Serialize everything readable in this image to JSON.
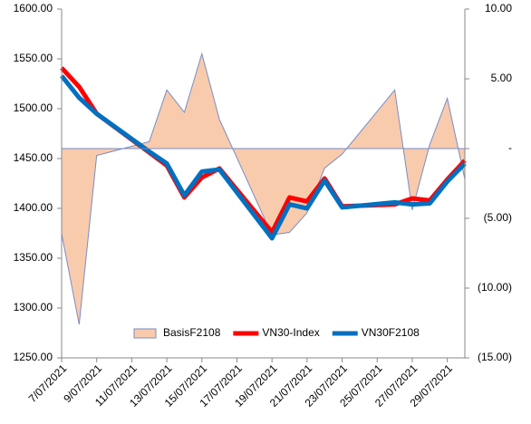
{
  "chart_data": {
    "type": "line",
    "x": [
      "7/07/2021",
      "8/07/2021",
      "9/07/2021",
      "12/07/2021",
      "13/07/2021",
      "14/07/2021",
      "15/07/2021",
      "16/07/2021",
      "19/07/2021",
      "20/07/2021",
      "21/07/2021",
      "22/07/2021",
      "23/07/2021",
      "26/07/2021",
      "27/07/2021",
      "28/07/2021",
      "29/07/2021",
      "30/07/2021"
    ],
    "xlim": [
      "7/07/2021",
      "30/07/2021"
    ],
    "xticks": [
      "7/07/2021",
      "9/07/2021",
      "11/07/2021",
      "13/07/2021",
      "15/07/2021",
      "17/07/2021",
      "19/07/2021",
      "21/07/2021",
      "23/07/2021",
      "25/07/2021",
      "27/07/2021",
      "29/07/2021"
    ],
    "ylim": [
      1250,
      1600
    ],
    "yticks": [
      {
        "value": 1250,
        "label": "1250.00"
      },
      {
        "value": 1300,
        "label": "1300.00"
      },
      {
        "value": 1350,
        "label": "1350.00"
      },
      {
        "value": 1400,
        "label": "1400.00"
      },
      {
        "value": 1450,
        "label": "1450.00"
      },
      {
        "value": 1500,
        "label": "1500.00"
      },
      {
        "value": 1550,
        "label": "1550.00"
      },
      {
        "value": 1600,
        "label": "1600.00"
      }
    ],
    "y2lim": [
      -15,
      10
    ],
    "y2ticks": [
      {
        "value": -15,
        "label": "(15.00)"
      },
      {
        "value": -10,
        "label": "(10.00)"
      },
      {
        "value": -5,
        "label": "(5.00)"
      },
      {
        "value": 0,
        "label": "-"
      },
      {
        "value": 5,
        "label": "5.00"
      },
      {
        "value": 10,
        "label": "10.00"
      }
    ],
    "grid": false,
    "legend": "bottom",
    "series": [
      {
        "name": "BasisF2108",
        "type": "area",
        "axis": "y2",
        "color": "#f8cbad",
        "values": [
          -6.1,
          -12.6,
          -0.5,
          0.5,
          4.2,
          2.6,
          6.8,
          2.1,
          -6.2,
          -6.0,
          -4.6,
          -1.4,
          -0.4,
          4.2,
          -4.4,
          0.3,
          3.6,
          -2.2
        ]
      },
      {
        "name": "VN30-Index",
        "type": "line",
        "color": "#ff0000",
        "values": [
          1541,
          1522,
          1495,
          1456,
          1443,
          1411,
          1431,
          1440,
          1376,
          1411,
          1407,
          1430,
          1402,
          1404,
          1410,
          1408,
          1429,
          1448
        ]
      },
      {
        "name": "VN30F2108",
        "type": "line",
        "color": "#0070c0",
        "values": [
          1533,
          1511,
          1495,
          1457,
          1445,
          1413,
          1437,
          1439,
          1370,
          1404,
          1400,
          1428,
          1401,
          1406,
          1404,
          1405,
          1427,
          1445
        ]
      }
    ]
  }
}
